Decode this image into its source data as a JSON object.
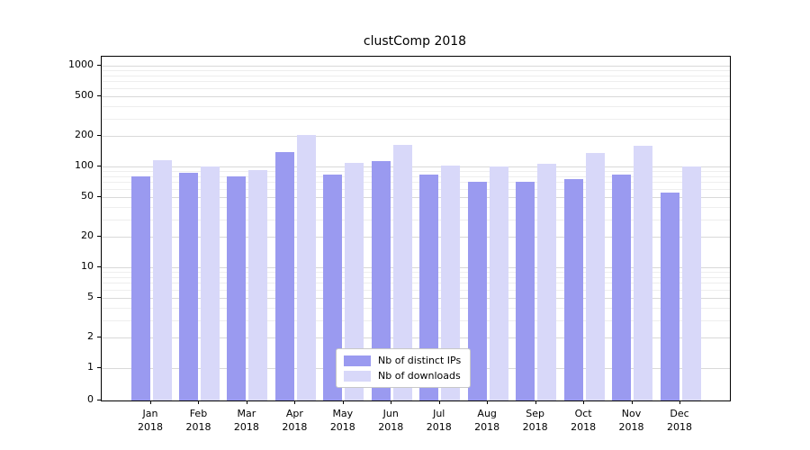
{
  "chart_data": {
    "type": "bar",
    "title": "clustComp 2018",
    "categories": [
      "Jan",
      "Feb",
      "Mar",
      "Apr",
      "May",
      "Jun",
      "Jul",
      "Aug",
      "Sep",
      "Oct",
      "Nov",
      "Dec"
    ],
    "year_label": "2018",
    "series": [
      {
        "name": "Nb of distinct IPs",
        "color": "#9a9af0",
        "values": [
          80,
          87,
          80,
          140,
          83,
          112,
          83,
          70,
          70,
          75,
          83,
          55
        ]
      },
      {
        "name": "Nb of downloads",
        "color": "#d8d8f9",
        "values": [
          115,
          100,
          93,
          205,
          108,
          165,
          103,
          100,
          107,
          135,
          160,
          100
        ]
      }
    ],
    "y_ticks": [
      0,
      1,
      2,
      5,
      10,
      20,
      50,
      100,
      200,
      500,
      1000
    ],
    "y_scale": "symlog",
    "ylim": [
      0,
      1400
    ],
    "grid": "on",
    "legend_position": "lower-center-inside",
    "xlabel": "",
    "ylabel": ""
  }
}
